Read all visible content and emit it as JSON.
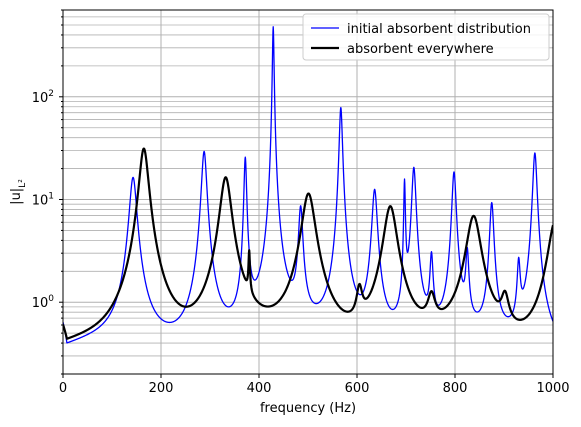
{
  "chart_data": {
    "type": "line",
    "title": "",
    "xlabel": "frequency (Hz)",
    "ylabel": "|u|",
    "ylabel_subscript": "L²",
    "xlim": [
      0,
      1000
    ],
    "ylim": [
      0.2,
      700
    ],
    "yscale": "log",
    "grid": "both",
    "legend": "top-right",
    "x_ticks": [
      0,
      200,
      400,
      600,
      800,
      1000
    ],
    "y_ticks": [
      {
        "value": 1,
        "label": "10",
        "exp": "0"
      },
      {
        "value": 10,
        "label": "10",
        "exp": "1"
      },
      {
        "value": 100,
        "label": "10",
        "exp": "2"
      }
    ],
    "series": [
      {
        "name": "initial absorbent distribution",
        "color": "#0000ff",
        "width": 1.3,
        "resonances": [
          {
            "f": 143,
            "peak": 16,
            "width": 7
          },
          {
            "f": 288,
            "peak": 29,
            "width": 5
          },
          {
            "f": 372,
            "peak": 25,
            "width": 2.5
          },
          {
            "f": 429,
            "peak": 480,
            "width": 1.5
          },
          {
            "f": 485,
            "peak": 7.8,
            "width": 4
          },
          {
            "f": 567,
            "peak": 78,
            "width": 3
          },
          {
            "f": 636,
            "peak": 12,
            "width": 5
          },
          {
            "f": 697,
            "peak": 14.5,
            "width": 1.5
          },
          {
            "f": 716,
            "peak": 20,
            "width": 4
          },
          {
            "f": 752,
            "peak": 2.3,
            "width": 3
          },
          {
            "f": 798,
            "peak": 18,
            "width": 4
          },
          {
            "f": 825,
            "peak": 2.5,
            "width": 3
          },
          {
            "f": 875,
            "peak": 8.8,
            "width": 4
          },
          {
            "f": 930,
            "peak": 1.9,
            "width": 3
          },
          {
            "f": 963,
            "peak": 28,
            "width": 4
          }
        ],
        "baseline": 0.33
      },
      {
        "name": "absorbent everywhere",
        "color": "#000000",
        "width": 2.2,
        "resonances": [
          {
            "f": 165,
            "peak": 31,
            "width": 9
          },
          {
            "f": 332,
            "peak": 16,
            "width": 11
          },
          {
            "f": 380,
            "peak": 1.9,
            "width": 1.5
          },
          {
            "f": 501,
            "peak": 11,
            "width": 13
          },
          {
            "f": 605,
            "peak": 0.7,
            "width": 6
          },
          {
            "f": 668,
            "peak": 8.2,
            "width": 13
          },
          {
            "f": 752,
            "peak": 0.55,
            "width": 8
          },
          {
            "f": 838,
            "peak": 6.5,
            "width": 14
          },
          {
            "f": 902,
            "peak": 0.58,
            "width": 8
          },
          {
            "f": 1005,
            "peak": 6,
            "width": 14
          }
        ],
        "baseline": 0.27
      }
    ]
  }
}
